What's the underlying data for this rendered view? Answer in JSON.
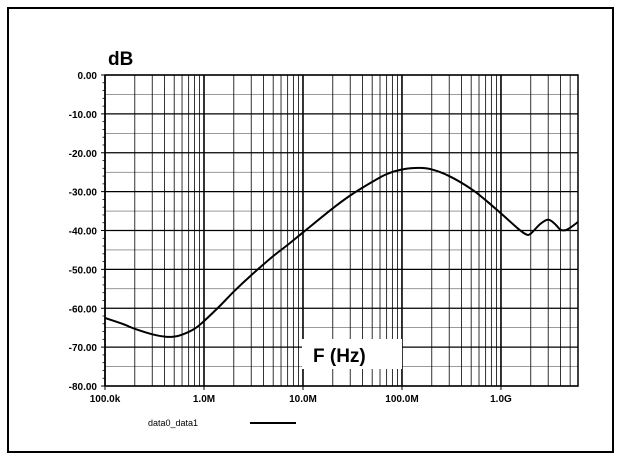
{
  "chart_data": {
    "type": "line",
    "title": "",
    "ylabel": "dB",
    "xlabel": "F (Hz)",
    "x_scale": "log",
    "xlim": [
      100000,
      6000000000
    ],
    "ylim": [
      -80,
      0
    ],
    "grid": true,
    "y_ticks": [
      {
        "value": 0,
        "label": "0.00"
      },
      {
        "value": -10,
        "label": "-10.00"
      },
      {
        "value": -20,
        "label": "-20.00"
      },
      {
        "value": -30,
        "label": "-30.00"
      },
      {
        "value": -40,
        "label": "-40.00"
      },
      {
        "value": -50,
        "label": "-50.00"
      },
      {
        "value": -60,
        "label": "-60.00"
      },
      {
        "value": -70,
        "label": "-70.00"
      },
      {
        "value": -80,
        "label": "-80.00"
      }
    ],
    "x_ticks": [
      {
        "value": 100000,
        "label": "100.0k"
      },
      {
        "value": 1000000,
        "label": "1.0M"
      },
      {
        "value": 10000000,
        "label": "10.0M"
      },
      {
        "value": 100000000,
        "label": "100.0M"
      },
      {
        "value": 1000000000,
        "label": "1.0G"
      }
    ],
    "legend": {
      "position": "bottom-left"
    },
    "series": [
      {
        "name": "data0_data1",
        "color": "#000000",
        "x": [
          100000,
          150000,
          200000,
          300000,
          400000,
          500000,
          600000,
          800000,
          1000000,
          1500000,
          2000000,
          3000000,
          5000000,
          7000000,
          10000000,
          20000000,
          30000000,
          50000000,
          70000000,
          100000000,
          150000000,
          200000000,
          300000000,
          500000000,
          700000000,
          1000000000,
          1500000000,
          1800000000,
          2000000000,
          2500000000,
          3000000000,
          3500000000,
          4000000000,
          4500000000,
          5000000000,
          6000000000
        ],
        "y": [
          -62.5,
          -64,
          -65.3,
          -66.7,
          -67.3,
          -67.3,
          -66.8,
          -65.3,
          -63.3,
          -59,
          -55.7,
          -51.5,
          -46.6,
          -43.7,
          -40.5,
          -34.3,
          -31,
          -27.5,
          -25.5,
          -24.3,
          -23.9,
          -24.3,
          -26,
          -29.3,
          -32.2,
          -35.6,
          -39.6,
          -41,
          -40.8,
          -38.3,
          -37.2,
          -38.3,
          -39.8,
          -39.9,
          -39.3,
          -37.8
        ]
      }
    ]
  }
}
